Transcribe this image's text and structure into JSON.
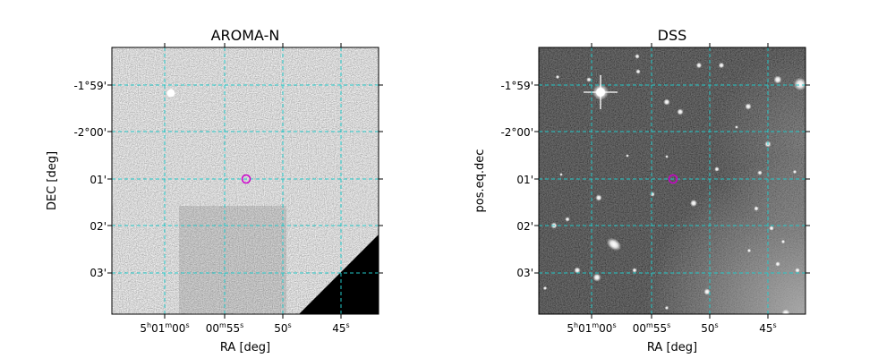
{
  "chart_data": [
    {
      "type": "image",
      "title": "AROMA-N",
      "xlabel": "RA [deg]",
      "ylabel": "DEC [deg]",
      "xticks": [
        {
          "t": "5h01m00s",
          "h": "5",
          "hs": "h",
          "m": "01",
          "ms": "m",
          "s": "00",
          "ss": "s"
        },
        {
          "t": "00m55s",
          "m": "00",
          "ms": "m",
          "s": "55",
          "ss": "s"
        },
        {
          "t": "50s",
          "s": "50",
          "ss": "s"
        },
        {
          "t": "45s",
          "s": "45",
          "ss": "s"
        }
      ],
      "yticks": [
        "-1°59'",
        "-2°00'",
        "01'",
        "02'",
        "03'"
      ],
      "grid": true,
      "grid_color": "#22c8c8",
      "image_style": "gray-noise",
      "marker_color": "#cc00cc"
    },
    {
      "type": "image",
      "title": "DSS",
      "xlabel": "RA [deg]",
      "ylabel": "pos.eq.dec",
      "xticks": [
        {
          "t": "5h01m00s",
          "h": "5",
          "hs": "h",
          "m": "01",
          "ms": "m",
          "s": "00",
          "ss": "s"
        },
        {
          "t": "00m55s",
          "m": "00",
          "ms": "m",
          "s": "55",
          "ss": "s"
        },
        {
          "t": "50s",
          "s": "50",
          "ss": "s"
        },
        {
          "t": "45s",
          "s": "45",
          "ss": "s"
        }
      ],
      "yticks": [
        "-1°59'",
        "-2°00'",
        "01'",
        "02'",
        "03'"
      ],
      "grid": true,
      "grid_color": "#22c8c8",
      "image_style": "dark-starfield",
      "marker_color": "#cc00cc"
    }
  ]
}
